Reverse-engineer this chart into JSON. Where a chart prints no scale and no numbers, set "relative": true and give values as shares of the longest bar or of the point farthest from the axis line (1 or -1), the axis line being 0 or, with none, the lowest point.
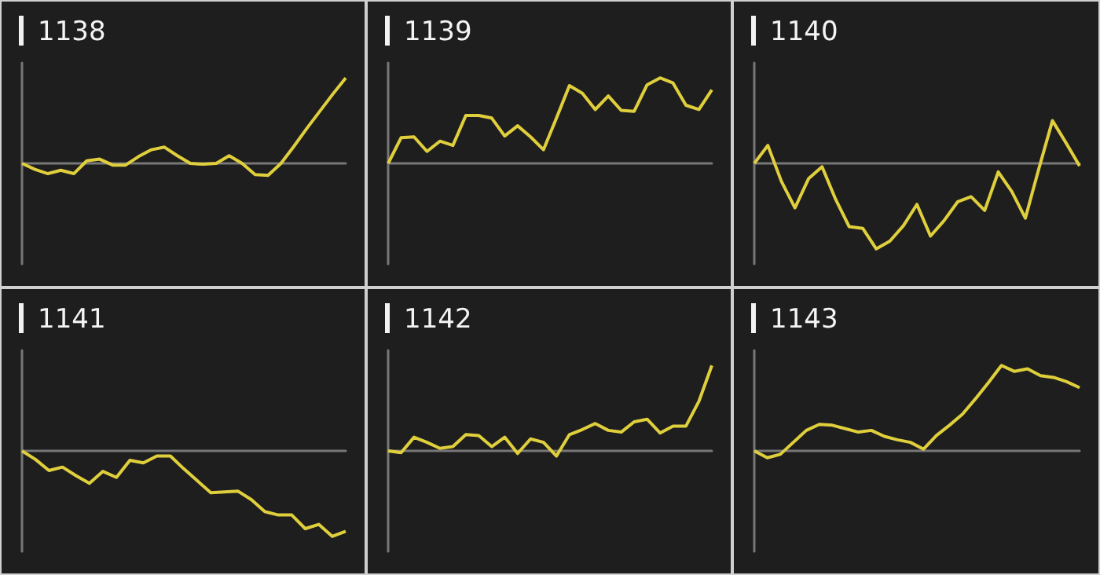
{
  "chart_data": [
    {
      "type": "line",
      "title": "1138",
      "relative": true,
      "color": "#e0cf3c",
      "categories": [
        null,
        null,
        null,
        null,
        null,
        null,
        null,
        null,
        null,
        null,
        null,
        null,
        null,
        null,
        null,
        null,
        null,
        null,
        null,
        null,
        null,
        null,
        null,
        null,
        null,
        null
      ],
      "values": [
        0,
        -0.07,
        -0.12,
        -0.08,
        -0.12,
        0.03,
        0.05,
        -0.02,
        -0.02,
        0.08,
        0.16,
        0.19,
        0.09,
        0,
        -0.01,
        0,
        0.09,
        0,
        -0.13,
        -0.14,
        0,
        0.2,
        0.41,
        0.61,
        0.81,
        1
      ]
    },
    {
      "type": "line",
      "title": "1139",
      "relative": true,
      "color": "#e0cf3c",
      "categories": [
        null,
        null,
        null,
        null,
        null,
        null,
        null,
        null,
        null,
        null,
        null,
        null,
        null,
        null,
        null,
        null,
        null,
        null,
        null,
        null,
        null,
        null,
        null,
        null,
        null,
        null
      ],
      "values": [
        0,
        0.3,
        0.31,
        0.14,
        0.26,
        0.21,
        0.56,
        0.56,
        0.53,
        0.32,
        0.44,
        0.31,
        0.16,
        0.53,
        0.91,
        0.82,
        0.63,
        0.79,
        0.62,
        0.61,
        0.92,
        1,
        0.94,
        0.68,
        0.63,
        0.86
      ]
    },
    {
      "type": "line",
      "title": "1140",
      "relative": true,
      "color": "#e0cf3c",
      "categories": [
        null,
        null,
        null,
        null,
        null,
        null,
        null,
        null,
        null,
        null,
        null,
        null,
        null,
        null,
        null,
        null,
        null,
        null,
        null,
        null,
        null,
        null,
        null,
        null,
        null
      ],
      "values": [
        0,
        0.21,
        -0.21,
        -0.52,
        -0.18,
        -0.04,
        -0.42,
        -0.74,
        -0.76,
        -1,
        -0.91,
        -0.73,
        -0.48,
        -0.85,
        -0.67,
        -0.45,
        -0.39,
        -0.55,
        -0.1,
        -0.33,
        -0.64,
        -0.06,
        0.5,
        0.24,
        -0.03
      ]
    },
    {
      "type": "line",
      "title": "1141",
      "relative": true,
      "color": "#e0cf3c",
      "categories": [
        null,
        null,
        null,
        null,
        null,
        null,
        null,
        null,
        null,
        null,
        null,
        null,
        null,
        null,
        null,
        null,
        null,
        null,
        null,
        null,
        null,
        null,
        null,
        null,
        null
      ],
      "values": [
        0,
        -0.1,
        -0.23,
        -0.19,
        -0.29,
        -0.38,
        -0.24,
        -0.31,
        -0.11,
        -0.14,
        -0.06,
        -0.06,
        -0.21,
        -0.35,
        -0.49,
        -0.48,
        -0.47,
        -0.57,
        -0.71,
        -0.75,
        -0.75,
        -0.91,
        -0.86,
        -1,
        -0.94
      ]
    },
    {
      "type": "line",
      "title": "1142",
      "relative": true,
      "color": "#e0cf3c",
      "categories": [
        null,
        null,
        null,
        null,
        null,
        null,
        null,
        null,
        null,
        null,
        null,
        null,
        null,
        null,
        null,
        null,
        null,
        null,
        null,
        null,
        null,
        null,
        null,
        null,
        null,
        null
      ],
      "values": [
        0,
        -0.02,
        0.16,
        0.1,
        0.03,
        0.05,
        0.19,
        0.18,
        0.05,
        0.16,
        -0.03,
        0.14,
        0.1,
        -0.06,
        0.19,
        0.25,
        0.32,
        0.24,
        0.22,
        0.34,
        0.37,
        0.21,
        0.29,
        0.29,
        0.58,
        1
      ]
    },
    {
      "type": "line",
      "title": "1143",
      "relative": true,
      "color": "#e0cf3c",
      "categories": [
        null,
        null,
        null,
        null,
        null,
        null,
        null,
        null,
        null,
        null,
        null,
        null,
        null,
        null,
        null,
        null,
        null,
        null,
        null,
        null,
        null,
        null,
        null,
        null,
        null,
        null
      ],
      "values": [
        0,
        -0.08,
        -0.04,
        0.1,
        0.24,
        0.31,
        0.3,
        0.26,
        0.22,
        0.24,
        0.17,
        0.13,
        0.1,
        0.02,
        0.18,
        0.3,
        0.43,
        0.61,
        0.8,
        1,
        0.93,
        0.96,
        0.88,
        0.86,
        0.81,
        0.74
      ]
    }
  ]
}
